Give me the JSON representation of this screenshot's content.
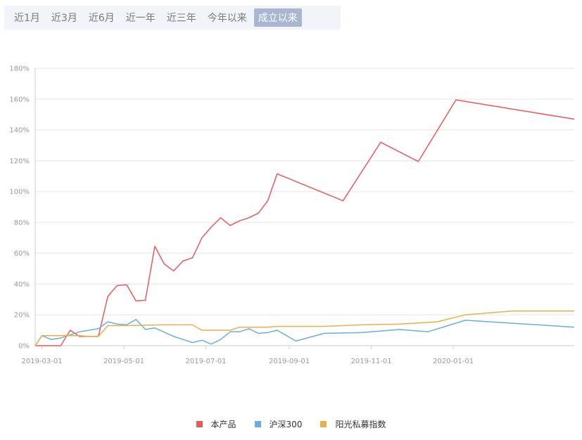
{
  "tabs": [
    {
      "label": "近1月",
      "active": false
    },
    {
      "label": "近3月",
      "active": false
    },
    {
      "label": "近6月",
      "active": false
    },
    {
      "label": "近一年",
      "active": false
    },
    {
      "label": "近三年",
      "active": false
    },
    {
      "label": "今年以来",
      "active": false
    },
    {
      "label": "成立以来",
      "active": true
    }
  ],
  "chart_data": {
    "type": "line",
    "title": "",
    "xlabel": "",
    "ylabel": "",
    "ylim": [
      0,
      180
    ],
    "yticks": [
      0,
      20,
      40,
      60,
      80,
      100,
      120,
      140,
      160,
      180
    ],
    "ytick_labels": [
      "0%",
      "20%",
      "40%",
      "60%",
      "80%",
      "100%",
      "120%",
      "140%",
      "160%",
      "180%"
    ],
    "xlim": [
      "2019-02-24",
      "2020-03-31"
    ],
    "xtick_labels": [
      "2019-03-01",
      "2019-05-01",
      "2019-07-01",
      "2019-09-01",
      "2019-11-01",
      "2020-01-01"
    ],
    "grid": true,
    "legend_position": "bottom-center",
    "series": [
      {
        "name": "本产品",
        "color": "#e85a5a",
        "points": [
          [
            "2019-02-24",
            0
          ],
          [
            "2019-03-08",
            0
          ],
          [
            "2019-03-15",
            0
          ],
          [
            "2019-03-22",
            10
          ],
          [
            "2019-03-29",
            6
          ],
          [
            "2019-04-05",
            6
          ],
          [
            "2019-04-12",
            6
          ],
          [
            "2019-04-19",
            32
          ],
          [
            "2019-04-26",
            39
          ],
          [
            "2019-05-03",
            39.5
          ],
          [
            "2019-05-10",
            29
          ],
          [
            "2019-05-17",
            29.5
          ],
          [
            "2019-05-24",
            64.5
          ],
          [
            "2019-05-31",
            53
          ],
          [
            "2019-06-07",
            48.5
          ],
          [
            "2019-06-14",
            55
          ],
          [
            "2019-06-21",
            57
          ],
          [
            "2019-06-28",
            70
          ],
          [
            "2019-07-05",
            77
          ],
          [
            "2019-07-12",
            83
          ],
          [
            "2019-07-19",
            78
          ],
          [
            "2019-07-26",
            81
          ],
          [
            "2019-08-02",
            83
          ],
          [
            "2019-08-09",
            86
          ],
          [
            "2019-08-16",
            94
          ],
          [
            "2019-08-23",
            111.5
          ],
          [
            "2019-10-11",
            94
          ],
          [
            "2019-11-08",
            132
          ],
          [
            "2019-12-06",
            119.5
          ],
          [
            "2020-01-03",
            159.5
          ],
          [
            "2020-03-31",
            147
          ]
        ]
      },
      {
        "name": "沪深300",
        "color": "#6aaee0",
        "points": [
          [
            "2019-02-24",
            0
          ],
          [
            "2019-03-01",
            6.5
          ],
          [
            "2019-03-08",
            4
          ],
          [
            "2019-03-15",
            5
          ],
          [
            "2019-03-29",
            9
          ],
          [
            "2019-04-12",
            11
          ],
          [
            "2019-04-19",
            15.5
          ],
          [
            "2019-04-26",
            14
          ],
          [
            "2019-05-03",
            13.5
          ],
          [
            "2019-05-10",
            17
          ],
          [
            "2019-05-17",
            10.5
          ],
          [
            "2019-05-24",
            11.5
          ],
          [
            "2019-06-07",
            6
          ],
          [
            "2019-06-14",
            4
          ],
          [
            "2019-06-21",
            2
          ],
          [
            "2019-06-28",
            3.5
          ],
          [
            "2019-07-05",
            1
          ],
          [
            "2019-07-12",
            4
          ],
          [
            "2019-07-19",
            9
          ],
          [
            "2019-07-26",
            9
          ],
          [
            "2019-08-02",
            11
          ],
          [
            "2019-08-09",
            8
          ],
          [
            "2019-08-16",
            8.5
          ],
          [
            "2019-08-23",
            10
          ],
          [
            "2019-09-06",
            3
          ],
          [
            "2019-09-27",
            8
          ],
          [
            "2019-10-25",
            8.5
          ],
          [
            "2019-11-22",
            10.5
          ],
          [
            "2019-12-13",
            9
          ],
          [
            "2020-01-10",
            16.5
          ],
          [
            "2020-03-31",
            12
          ]
        ]
      },
      {
        "name": "阳光私募指数",
        "color": "#e8b04a",
        "points": [
          [
            "2019-02-24",
            0
          ],
          [
            "2019-03-01",
            6.5
          ],
          [
            "2019-03-29",
            6.5
          ],
          [
            "2019-04-05",
            6
          ],
          [
            "2019-04-12",
            6
          ],
          [
            "2019-04-19",
            13
          ],
          [
            "2019-05-03",
            13
          ],
          [
            "2019-05-31",
            13.5
          ],
          [
            "2019-06-14",
            13.5
          ],
          [
            "2019-06-21",
            13.5
          ],
          [
            "2019-06-28",
            10
          ],
          [
            "2019-07-19",
            10
          ],
          [
            "2019-07-26",
            12
          ],
          [
            "2019-08-16",
            12
          ],
          [
            "2019-08-23",
            12.5
          ],
          [
            "2019-09-27",
            12.5
          ],
          [
            "2019-10-25",
            13.5
          ],
          [
            "2019-11-22",
            14
          ],
          [
            "2019-12-20",
            15.5
          ],
          [
            "2020-01-10",
            20
          ],
          [
            "2020-02-14",
            22.5
          ],
          [
            "2020-03-31",
            22.5
          ]
        ]
      }
    ]
  }
}
